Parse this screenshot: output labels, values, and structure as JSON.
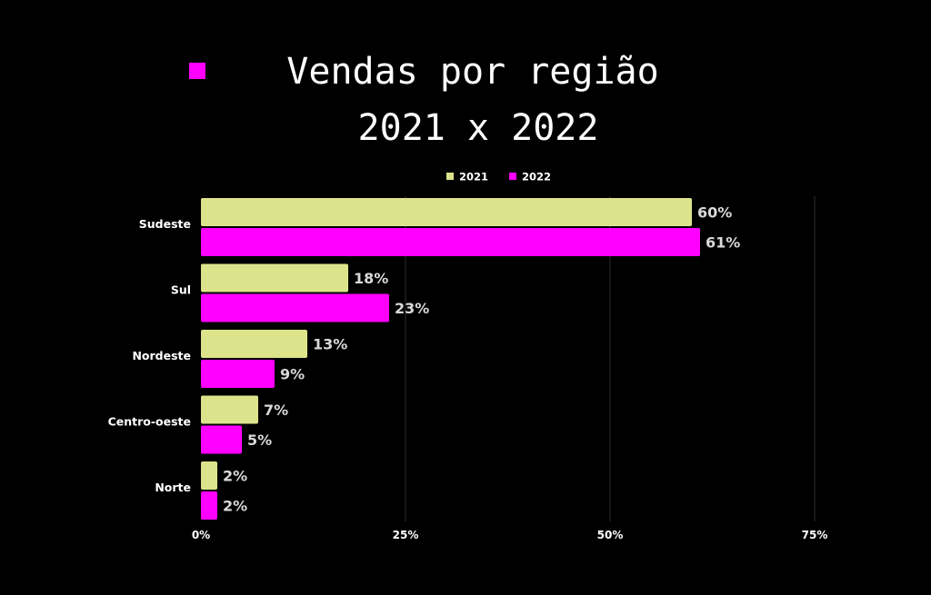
{
  "title_line_1": "Vendas por região",
  "title_line_2": "2021 x 2022",
  "colors": {
    "background": "#000000",
    "series_2021": "#dde38b",
    "series_2022": "#ff00ff",
    "grid": "#2e2e2e",
    "text": "#ffffff",
    "data_label": "#d9d9d9"
  },
  "chart_data": {
    "type": "bar",
    "orientation": "horizontal",
    "title": "Vendas por região 2021 x 2022",
    "categories": [
      "Sudeste",
      "Sul",
      "Nordeste",
      "Centro-oeste",
      "Norte"
    ],
    "series": [
      {
        "name": "2021",
        "values": [
          60,
          18,
          13,
          7,
          2
        ],
        "color": "#dde38b"
      },
      {
        "name": "2022",
        "values": [
          61,
          23,
          9,
          5,
          2
        ],
        "color": "#ff00ff"
      }
    ],
    "value_suffix": "%",
    "xlim": [
      0,
      80
    ],
    "xticks": [
      0,
      25,
      50,
      75
    ],
    "xtick_labels": [
      "0%",
      "25%",
      "50%",
      "75%"
    ],
    "grid": true,
    "legend_position": "top-center",
    "xlabel": "",
    "ylabel": ""
  }
}
